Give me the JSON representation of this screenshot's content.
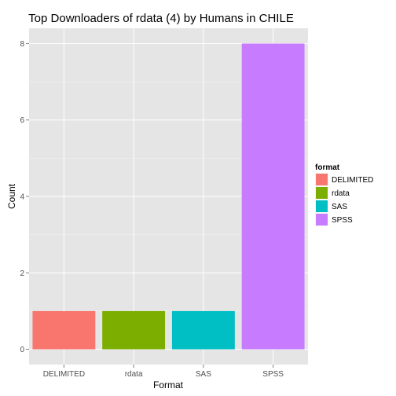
{
  "chart_data": {
    "type": "bar",
    "title": "Top Downloaders of rdata (4) by Humans in CHILE",
    "xlabel": "Format",
    "ylabel": "Count",
    "categories": [
      "DELIMITED",
      "rdata",
      "SAS",
      "SPSS"
    ],
    "values": [
      1,
      1,
      1,
      8
    ],
    "colors": [
      "#F8766D",
      "#7CAE00",
      "#00BFC4",
      "#C77CFF"
    ],
    "ylim": [
      -0.4,
      8.4
    ],
    "y_ticks": [
      0,
      2,
      4,
      6,
      8
    ],
    "grid": true,
    "panel_background": "#E5E5E5",
    "gridline_color": "#FFFFFF",
    "legend": {
      "title": "format",
      "position": "right",
      "entries": [
        "DELIMITED",
        "rdata",
        "SAS",
        "SPSS"
      ]
    }
  }
}
